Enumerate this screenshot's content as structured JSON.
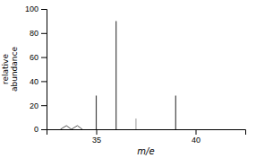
{
  "chart_data": {
    "type": "stem",
    "xlabel": "m/e",
    "ylabel": "relative\nabundance",
    "series": [
      {
        "type": "stem",
        "x": [
          35,
          36,
          37,
          39
        ],
        "values": [
          28,
          90,
          9,
          28
        ],
        "colors": [
          "#444444",
          "#444444",
          "#aaaaaa",
          "#444444"
        ]
      },
      {
        "type": "line",
        "x": [
          33.2,
          33.5,
          33.75,
          34.05,
          34.3
        ],
        "values": [
          0,
          3,
          0,
          3,
          0
        ],
        "color": "#555555"
      }
    ],
    "xlim": [
      32.5,
      42.5
    ],
    "ylim": [
      0,
      100
    ],
    "xticks": [
      35,
      40
    ],
    "yticks": [
      0,
      20,
      40,
      60,
      80,
      100
    ]
  }
}
